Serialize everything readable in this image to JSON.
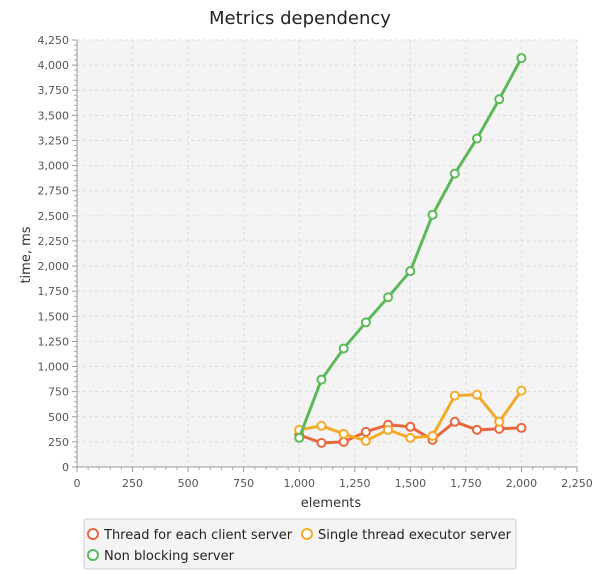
{
  "chart_data": {
    "type": "line",
    "title": "Metrics dependency",
    "xlabel": "elements",
    "ylabel": "time, ms",
    "xlim": [
      0,
      2250
    ],
    "ylim": [
      0,
      4250
    ],
    "x_ticks": [
      0,
      250,
      500,
      750,
      1000,
      1250,
      1500,
      1750,
      2000,
      2250
    ],
    "x_tick_labels": [
      "0",
      "250",
      "500",
      "750",
      "1,000",
      "1,250",
      "1,500",
      "1,750",
      "2,000",
      "2,250"
    ],
    "y_ticks": [
      0,
      250,
      500,
      750,
      1000,
      1250,
      1500,
      1750,
      2000,
      2250,
      2500,
      2750,
      3000,
      3250,
      3500,
      3750,
      4000,
      4250
    ],
    "y_tick_labels": [
      "0",
      "250",
      "500",
      "750",
      "1,000",
      "1,250",
      "1,500",
      "1,750",
      "2,000",
      "2,250",
      "2,500",
      "2,750",
      "3,000",
      "3,250",
      "3,500",
      "3,750",
      "4,000",
      "4,250"
    ],
    "grid": true,
    "legend_position": "bottom",
    "x": [
      1000,
      1100,
      1200,
      1300,
      1400,
      1500,
      1600,
      1700,
      1800,
      1900,
      2000
    ],
    "series": [
      {
        "name": "Thread for each client server",
        "color": "#e8683e",
        "values": [
          320,
          240,
          250,
          350,
          420,
          400,
          270,
          450,
          370,
          380,
          390
        ]
      },
      {
        "name": "Single thread executor server",
        "color": "#f3aa2b",
        "values": [
          370,
          410,
          330,
          260,
          370,
          290,
          310,
          710,
          720,
          450,
          760
        ]
      },
      {
        "name": "Non blocking server",
        "color": "#5cb95a",
        "values": [
          290,
          870,
          1180,
          1440,
          1690,
          1950,
          2510,
          2920,
          3270,
          3660,
          4070
        ]
      }
    ]
  }
}
